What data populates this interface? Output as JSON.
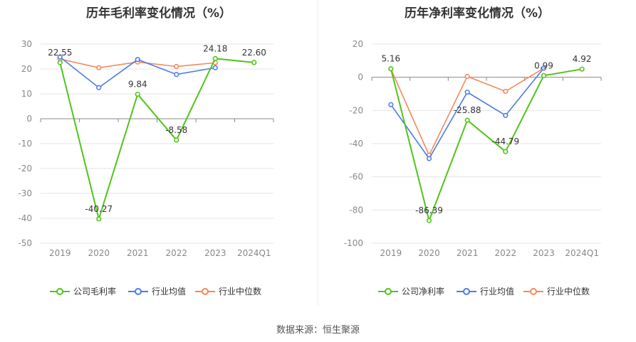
{
  "source_text": "数据来源：恒生聚源",
  "chart_data": [
    {
      "type": "line",
      "title": "历年毛利率变化情况（%）",
      "categories": [
        "2019",
        "2020",
        "2021",
        "2022",
        "2023",
        "2024Q1"
      ],
      "ylim": [
        -50,
        30
      ],
      "yticks": [
        30,
        20,
        10,
        0,
        -10,
        -20,
        -30,
        -40,
        -50
      ],
      "grid": true,
      "legend_position": "bottom",
      "series": [
        {
          "name": "公司毛利率",
          "color": "#52c41a",
          "values": [
            22.55,
            -40.27,
            9.84,
            -8.58,
            24.18,
            22.6
          ],
          "labels": [
            "22.55",
            "-40.27",
            "9.84",
            "-8.58",
            "24.18",
            "22.60"
          ]
        },
        {
          "name": "行业均值",
          "color": "#4e7be6",
          "values": [
            24.8,
            12.5,
            23.8,
            17.8,
            20.5,
            null
          ]
        },
        {
          "name": "行业中位数",
          "color": "#f4885c",
          "values": [
            24.0,
            20.5,
            22.8,
            21.0,
            22.5,
            null
          ]
        }
      ]
    },
    {
      "type": "line",
      "title": "历年净利率变化情况（%）",
      "categories": [
        "2019",
        "2020",
        "2021",
        "2022",
        "2023",
        "2024Q1"
      ],
      "ylim": [
        -100,
        20
      ],
      "yticks": [
        20,
        0,
        -20,
        -40,
        -60,
        -80,
        -100
      ],
      "grid": true,
      "legend_position": "bottom",
      "series": [
        {
          "name": "公司净利率",
          "color": "#52c41a",
          "values": [
            5.16,
            -86.39,
            -25.88,
            -44.79,
            0.99,
            4.92
          ],
          "labels": [
            "5.16",
            "-86.39",
            "-25.88",
            "-44.79",
            "0.99",
            "4.92"
          ]
        },
        {
          "name": "行业均值",
          "color": "#4e7be6",
          "values": [
            -16.5,
            -49.0,
            -9.0,
            -23.0,
            5.5,
            null
          ]
        },
        {
          "name": "行业中位数",
          "color": "#f4885c",
          "values": [
            5.0,
            -47.0,
            0.5,
            -8.5,
            5.5,
            null
          ]
        }
      ]
    }
  ]
}
